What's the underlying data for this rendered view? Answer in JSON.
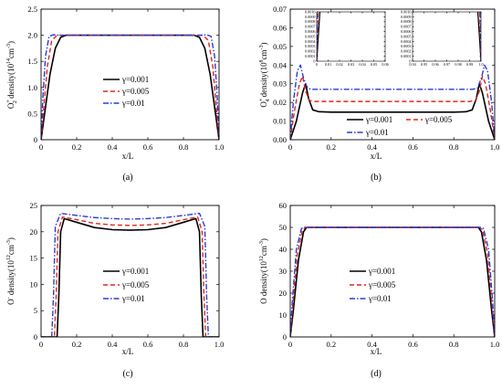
{
  "figure": {
    "captions": [
      "(a)",
      "(b)",
      "(c)",
      "(d)"
    ],
    "legend_labels": [
      "γ=0.001",
      "γ=0.005",
      "γ=0.01"
    ],
    "series_colors": [
      "#000000",
      "#e8231b",
      "#2a3bd6"
    ],
    "series_dash": [
      "solid",
      "dashed",
      "dashdot"
    ]
  },
  "chart_data": [
    {
      "type": "line",
      "caption": "(a)",
      "xlabel": "x/L",
      "ylabel": "O₂⁺ density(10¹⁴cm⁻³)",
      "xlim": [
        0,
        1.0
      ],
      "ylim": [
        0,
        2.5
      ],
      "xticks": [
        "0",
        "0.2",
        "0.4",
        "0.6",
        "0.8",
        "1.0"
      ],
      "yticks": [
        "0",
        "0.5",
        "1.0",
        "1.5",
        "2.0",
        "2.5"
      ],
      "legend_position": "center-right",
      "series": [
        {
          "name": "γ=0.001",
          "x": [
            0,
            0.02,
            0.05,
            0.08,
            0.11,
            0.14,
            0.5,
            0.86,
            0.89,
            0.92,
            0.95,
            0.98,
            1.0
          ],
          "y": [
            0,
            0.5,
            1.25,
            1.75,
            1.96,
            2.0,
            2.0,
            2.0,
            1.96,
            1.75,
            1.25,
            0.5,
            0
          ]
        },
        {
          "name": "γ=0.005",
          "x": [
            0,
            0.015,
            0.035,
            0.06,
            0.09,
            0.12,
            0.5,
            0.88,
            0.91,
            0.94,
            0.965,
            0.985,
            1.0
          ],
          "y": [
            0,
            0.6,
            1.4,
            1.9,
            2.0,
            2.0,
            2.0,
            2.0,
            2.0,
            1.9,
            1.4,
            0.6,
            0
          ]
        },
        {
          "name": "γ=0.01",
          "x": [
            0,
            0.01,
            0.025,
            0.045,
            0.07,
            0.1,
            0.5,
            0.9,
            0.93,
            0.955,
            0.975,
            0.99,
            1.0
          ],
          "y": [
            0,
            0.8,
            1.6,
            1.98,
            2.01,
            2.0,
            2.0,
            2.0,
            2.01,
            1.98,
            1.6,
            0.8,
            0
          ]
        }
      ]
    },
    {
      "type": "line",
      "caption": "(b)",
      "xlabel": "x/L",
      "ylabel": "O₄⁺ density(10⁸cm⁻³)",
      "xlim": [
        0,
        1.0
      ],
      "ylim": [
        0,
        0.07
      ],
      "xticks": [
        "0",
        "0.2",
        "0.4",
        "0.6",
        "0.8",
        "1.0"
      ],
      "yticks": [
        "0.00",
        "0.01",
        "0.02",
        "0.03",
        "0.04",
        "0.05",
        "0.06",
        "0.07"
      ],
      "legend_position": "bottom",
      "series": [
        {
          "name": "γ=0.001",
          "x": [
            0,
            0.03,
            0.06,
            0.075,
            0.09,
            0.11,
            0.14,
            0.2,
            0.5,
            0.8,
            0.86,
            0.89,
            0.91,
            0.925,
            0.94,
            0.97,
            1.0
          ],
          "y": [
            0,
            0.01,
            0.025,
            0.03,
            0.022,
            0.016,
            0.015,
            0.0148,
            0.0148,
            0.0148,
            0.015,
            0.016,
            0.022,
            0.03,
            0.025,
            0.01,
            0
          ]
        },
        {
          "name": "γ=0.005",
          "x": [
            0,
            0.02,
            0.045,
            0.06,
            0.075,
            0.095,
            0.12,
            0.5,
            0.88,
            0.905,
            0.925,
            0.94,
            0.955,
            0.98,
            1.0
          ],
          "y": [
            0,
            0.015,
            0.03,
            0.034,
            0.026,
            0.021,
            0.0205,
            0.0205,
            0.0205,
            0.021,
            0.026,
            0.034,
            0.03,
            0.015,
            0
          ]
        },
        {
          "name": "γ=0.01",
          "x": [
            0,
            0.015,
            0.035,
            0.05,
            0.065,
            0.085,
            0.11,
            0.5,
            0.89,
            0.915,
            0.935,
            0.95,
            0.965,
            0.985,
            1.0
          ],
          "y": [
            0,
            0.02,
            0.037,
            0.04,
            0.033,
            0.0275,
            0.027,
            0.027,
            0.027,
            0.0275,
            0.033,
            0.04,
            0.037,
            0.02,
            0
          ]
        }
      ],
      "insets": [
        {
          "xticks": [
            "0",
            "0.01",
            "0.02",
            "0.03",
            "0.04",
            "0.05",
            "0.06"
          ],
          "yticks": [
            "0",
            "0.0001",
            "0.0002",
            "0.0003",
            "0.0004",
            "0.0005",
            "0.0006",
            "0.0007",
            "0.0008",
            "0.0009",
            "0.0010"
          ],
          "xlim": [
            0,
            0.065
          ],
          "ylim": [
            0,
            0.001
          ]
        },
        {
          "xticks": [
            "0.94",
            "0.95",
            "0.96",
            "0.97",
            "0.98",
            "0.99",
            "1.0"
          ],
          "yticks": [
            "0",
            "0.0001",
            "0.0002",
            "0.0003",
            "0.0004",
            "0.0005",
            "0.0006",
            "0.0007",
            "0.0008",
            "0.0009",
            "0.0010"
          ],
          "xlim": [
            0.935,
            1.0
          ],
          "ylim": [
            0,
            0.001
          ]
        }
      ]
    },
    {
      "type": "line",
      "caption": "(c)",
      "xlabel": "x/L",
      "ylabel": "O⁻ density(10¹²cm⁻³)",
      "xlim": [
        0,
        1.0
      ],
      "ylim": [
        0,
        25
      ],
      "xticks": [
        "0",
        "0.2",
        "0.4",
        "0.6",
        "0.8",
        "1.0"
      ],
      "yticks": [
        "0",
        "5",
        "10",
        "15",
        "20",
        "25"
      ],
      "legend_position": "bottom-right",
      "series": [
        {
          "name": "γ=0.001",
          "x": [
            0,
            0.09,
            0.1,
            0.11,
            0.13,
            0.2,
            0.3,
            0.4,
            0.5,
            0.6,
            0.7,
            0.8,
            0.87,
            0.89,
            0.9,
            0.91,
            1.0
          ],
          "y": [
            0,
            0,
            8,
            20,
            22.5,
            21.8,
            20.8,
            20.4,
            20.3,
            20.4,
            20.8,
            21.8,
            22.5,
            20,
            8,
            0,
            0
          ]
        },
        {
          "name": "γ=0.005",
          "x": [
            0,
            0.075,
            0.085,
            0.095,
            0.12,
            0.2,
            0.3,
            0.4,
            0.5,
            0.6,
            0.7,
            0.8,
            0.88,
            0.905,
            0.915,
            0.925,
            1.0
          ],
          "y": [
            0,
            0,
            8,
            20,
            22.8,
            22.3,
            21.6,
            21.3,
            21.2,
            21.3,
            21.6,
            22.3,
            22.8,
            20,
            8,
            0,
            0
          ]
        },
        {
          "name": "γ=0.01",
          "x": [
            0,
            0.06,
            0.07,
            0.08,
            0.11,
            0.2,
            0.3,
            0.4,
            0.5,
            0.6,
            0.7,
            0.8,
            0.89,
            0.92,
            0.93,
            0.94,
            1.0
          ],
          "y": [
            0,
            0,
            8,
            21,
            23.5,
            23.1,
            22.7,
            22.5,
            22.4,
            22.5,
            22.7,
            23.1,
            23.5,
            21,
            8,
            0,
            0
          ]
        }
      ]
    },
    {
      "type": "line",
      "caption": "(d)",
      "xlabel": "x/L",
      "ylabel": "O density(10¹²cm⁻³)",
      "xlim": [
        0,
        1.0
      ],
      "ylim": [
        0,
        60
      ],
      "xticks": [
        "0",
        "0.2",
        "0.4",
        "0.6",
        "0.8",
        "1.0"
      ],
      "yticks": [
        "0",
        "10",
        "20",
        "30",
        "40",
        "50",
        "60"
      ],
      "legend_position": "bottom-right",
      "series": [
        {
          "name": "γ=0.001",
          "x": [
            0,
            0.015,
            0.04,
            0.065,
            0.08,
            0.5,
            0.92,
            0.935,
            0.96,
            0.985,
            1.0
          ],
          "y": [
            0,
            12,
            35,
            48,
            50,
            50,
            50,
            48,
            35,
            12,
            0
          ]
        },
        {
          "name": "γ=0.005",
          "x": [
            0,
            0.012,
            0.035,
            0.06,
            0.075,
            0.5,
            0.925,
            0.94,
            0.965,
            0.988,
            1.0
          ],
          "y": [
            0,
            14,
            38,
            49,
            50,
            50,
            50,
            49,
            38,
            14,
            0
          ]
        },
        {
          "name": "γ=0.01",
          "x": [
            0,
            0.01,
            0.03,
            0.055,
            0.07,
            0.5,
            0.93,
            0.945,
            0.97,
            0.99,
            1.0
          ],
          "y": [
            0,
            16,
            40,
            49.5,
            50,
            50,
            50,
            49.5,
            40,
            16,
            0
          ]
        }
      ]
    }
  ]
}
